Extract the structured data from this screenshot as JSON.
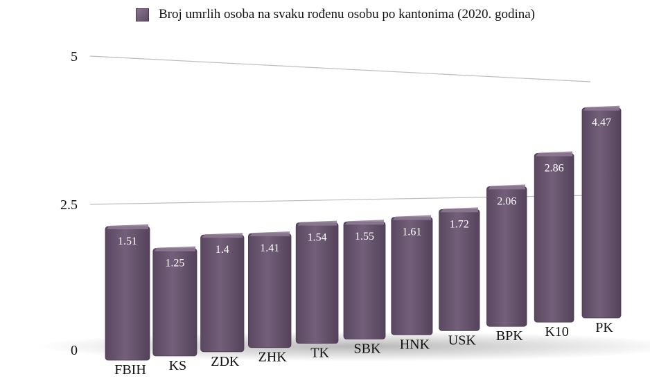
{
  "chart_data": {
    "type": "bar",
    "title": "",
    "legend": [
      "Broj umrlih osoba na svaku rođenu osobu po kantonima (2020. godina)"
    ],
    "legend_position": "top",
    "categories": [
      "FBIH",
      "KS",
      "ZDK",
      "ZHK",
      "TK",
      "SBK",
      "HNK",
      "USK",
      "BPK",
      "K10",
      "PK"
    ],
    "series": [
      {
        "name": "Broj umrlih osoba na svaku rođenu osobu po kantonima (2020. godina)",
        "values": [
          1.51,
          1.25,
          1.4,
          1.41,
          1.54,
          1.55,
          1.61,
          1.72,
          2.06,
          2.86,
          4.47
        ]
      }
    ],
    "data_labels": [
      "1.51",
      "1.25",
      "1.4",
      "1.41",
      "1.54",
      "1.55",
      "1.61",
      "1.72",
      "2.06",
      "2.86",
      "4.47"
    ],
    "y_ticks": [
      "0",
      "2.5",
      "5"
    ],
    "ylim": [
      0,
      5
    ],
    "grid": true,
    "xlabel": "",
    "ylabel": "",
    "colors": {
      "bar": "#6b5870",
      "bar_top": "#8e7a93",
      "label": "#ffffff",
      "grid": "#bdbdbd"
    }
  }
}
